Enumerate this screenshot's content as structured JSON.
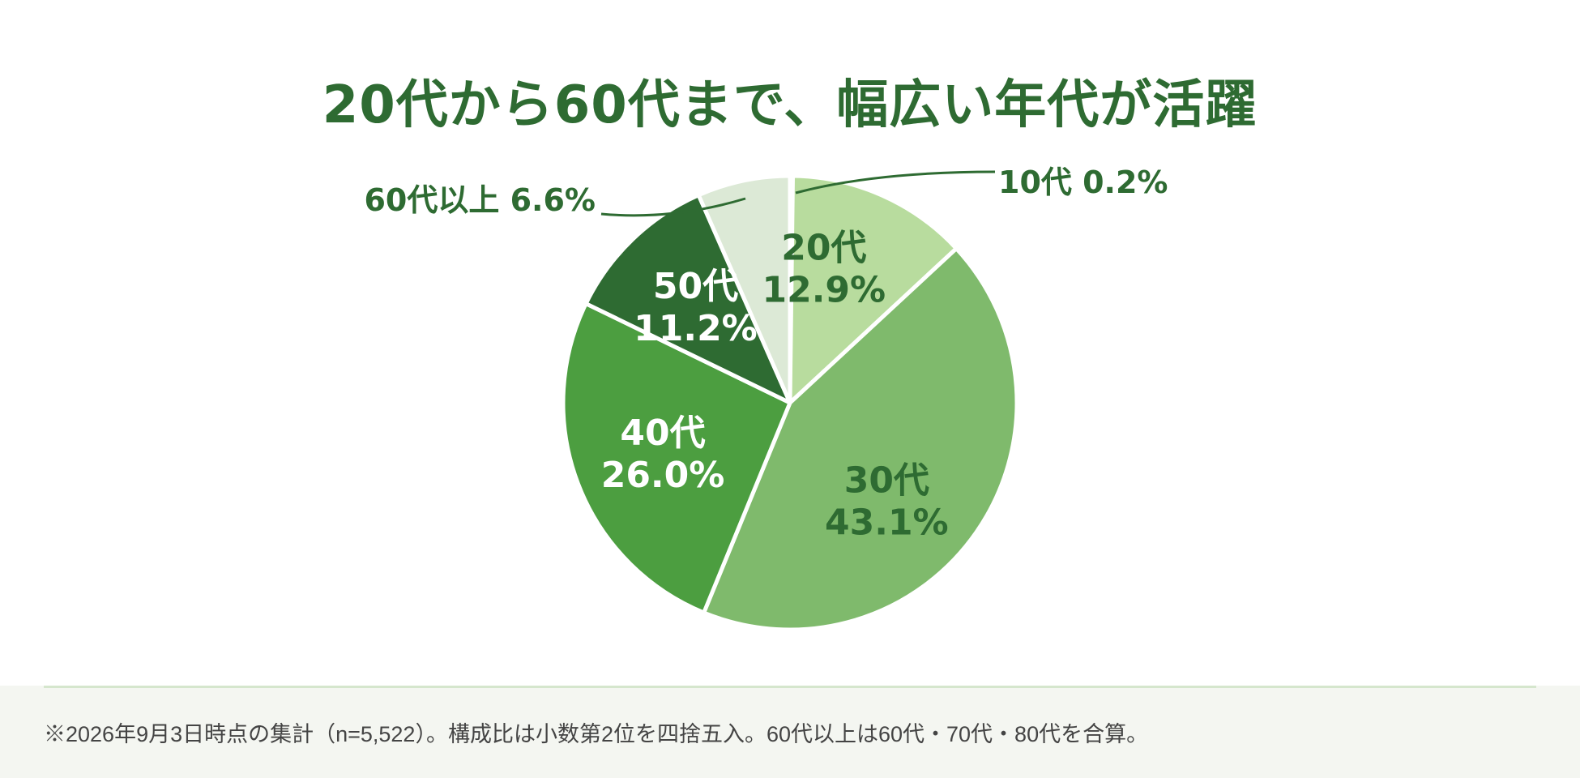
{
  "chart_data": {
    "type": "pie",
    "title": "20代から60代まで、幅広い年代が活躍",
    "slices": [
      {
        "label": "10代",
        "value": 0.2,
        "value_label": "0.2%",
        "color": "#d9e9d0",
        "label_color": "#2e6b32",
        "callout": true
      },
      {
        "label": "20代",
        "value": 12.9,
        "value_label": "12.9%",
        "color": "#b8dc9e",
        "label_color": "#2e6b32",
        "callout": false
      },
      {
        "label": "30代",
        "value": 43.1,
        "value_label": "43.1%",
        "color": "#7fba6c",
        "label_color": "#2e6b32",
        "callout": false
      },
      {
        "label": "40代",
        "value": 26.0,
        "value_label": "26.0%",
        "color": "#4c9e40",
        "label_color": "#ffffff",
        "callout": false
      },
      {
        "label": "50代",
        "value": 11.2,
        "value_label": "11.2%",
        "color": "#2e6b32",
        "label_color": "#ffffff",
        "callout": false
      },
      {
        "label": "60代以上",
        "value": 6.6,
        "value_label": "6.6%",
        "color": "#dce9d6",
        "label_color": "#2e6b32",
        "callout": true
      }
    ]
  },
  "footer": {
    "note": "※2026年9月3日時点の集計（n=5,522）。構成比は小数第2位を四捨五入。60代以上は60代・70代・80代を合算。"
  },
  "colors": {
    "title": "#2e6b32",
    "leader_line": "#2e6b32",
    "slice_border": "#ffffff"
  }
}
